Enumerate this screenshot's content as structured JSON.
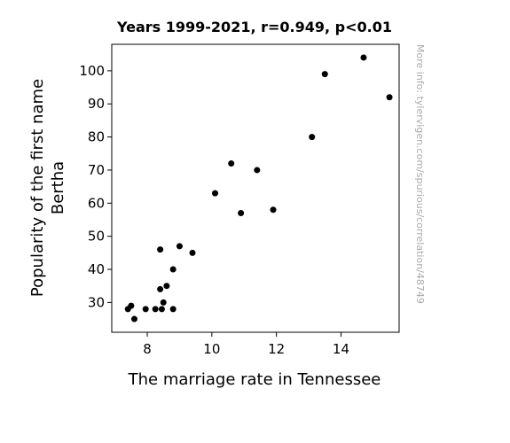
{
  "chart_data": {
    "type": "scatter",
    "title": "Years 1999-2021, r=0.949, p<0.01",
    "xlabel": "The marriage rate in Tennessee",
    "ylabel_lines": [
      "Popularity of the first name",
      "Bertha"
    ],
    "xlim": [
      6.9,
      15.8
    ],
    "ylim": [
      21,
      108
    ],
    "xticks": [
      8,
      10,
      12,
      14
    ],
    "yticks": [
      30,
      40,
      50,
      60,
      70,
      80,
      90,
      100
    ],
    "watermark": "More info: tylervigen.com/spurious/correlation/48749",
    "point_color": "#000000",
    "points": [
      {
        "x": 7.4,
        "y": 28
      },
      {
        "x": 7.5,
        "y": 29
      },
      {
        "x": 7.6,
        "y": 25
      },
      {
        "x": 7.95,
        "y": 28
      },
      {
        "x": 8.25,
        "y": 28
      },
      {
        "x": 8.4,
        "y": 46
      },
      {
        "x": 8.4,
        "y": 34
      },
      {
        "x": 8.45,
        "y": 28
      },
      {
        "x": 8.5,
        "y": 30
      },
      {
        "x": 8.6,
        "y": 35
      },
      {
        "x": 8.8,
        "y": 40
      },
      {
        "x": 8.8,
        "y": 28
      },
      {
        "x": 9.0,
        "y": 47
      },
      {
        "x": 9.4,
        "y": 45
      },
      {
        "x": 10.1,
        "y": 63
      },
      {
        "x": 10.6,
        "y": 72
      },
      {
        "x": 10.9,
        "y": 57
      },
      {
        "x": 11.4,
        "y": 70
      },
      {
        "x": 11.9,
        "y": 58
      },
      {
        "x": 13.1,
        "y": 80
      },
      {
        "x": 13.5,
        "y": 99
      },
      {
        "x": 14.7,
        "y": 104
      },
      {
        "x": 15.5,
        "y": 92
      }
    ]
  }
}
